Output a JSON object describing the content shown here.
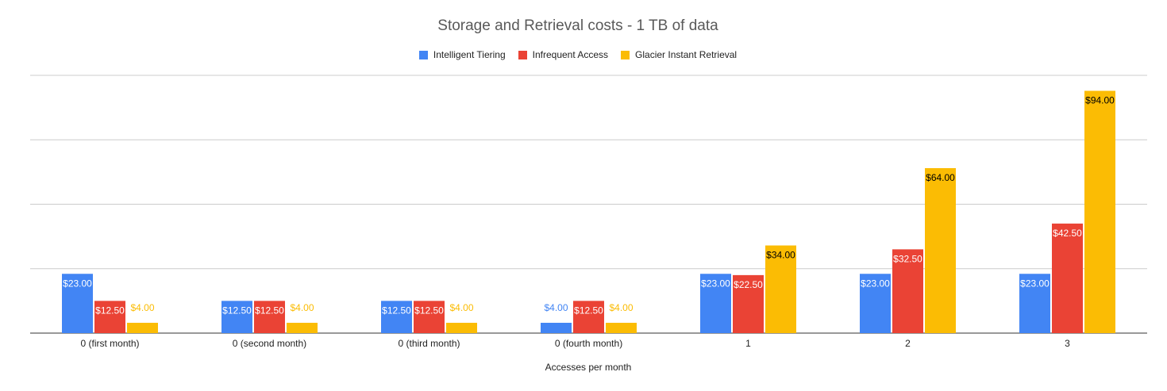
{
  "chart_data": {
    "type": "bar",
    "title": "Storage and Retrieval costs - 1 TB of data",
    "xlabel": "Accesses per month",
    "ylabel": "",
    "ylim": [
      0,
      100
    ],
    "grid": true,
    "legend_position": "top",
    "categories": [
      "0 (first month)",
      "0 (second month)",
      "0 (third month)",
      "0 (fourth month)",
      "1",
      "2",
      "3"
    ],
    "series": [
      {
        "name": "Intelligent Tiering",
        "color": "#4285f4",
        "values": [
          23,
          12.5,
          12.5,
          4,
          23,
          23,
          23
        ],
        "labels": [
          "$23.00",
          "$12.50",
          "$12.50",
          "$4.00",
          "$23.00",
          "$23.00",
          "$23.00"
        ]
      },
      {
        "name": "Infrequent Access",
        "color": "#ea4335",
        "values": [
          12.5,
          12.5,
          12.5,
          12.5,
          22.5,
          32.5,
          42.5
        ],
        "labels": [
          "$12.50",
          "$12.50",
          "$12.50",
          "$12.50",
          "$22.50",
          "$32.50",
          "$42.50"
        ]
      },
      {
        "name": "Glacier Instant Retrieval",
        "color": "#fbbc04",
        "values": [
          4,
          4,
          4,
          4,
          34,
          64,
          94
        ],
        "labels": [
          "$4.00",
          "$4.00",
          "$4.00",
          "$4.00",
          "$34.00",
          "$64.00",
          "$94.00"
        ]
      }
    ]
  }
}
